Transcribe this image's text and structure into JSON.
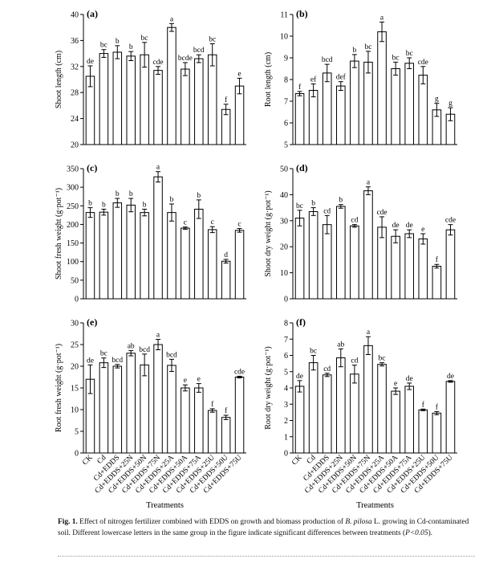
{
  "figure": {
    "xlabel": "Treatments",
    "categories": [
      "CK",
      "Cd",
      "Cd+EDDS",
      "Cd+EDDS+25N",
      "Cd+EDDS+50N",
      "Cd+EDDS+75N",
      "Cd+EDDS+25A",
      "Cd+EDDS+50A",
      "Cd+EDDS+75A",
      "Cd+EDDS+25U",
      "Cd+EDDS+50U",
      "Cd+EDDS+75U"
    ]
  },
  "caption": {
    "label": "Fig. 1.",
    "text_a": "Effect of nitrogen fertilizer combined with EDDS on growth and biomass production of ",
    "species": "B. pilosa",
    "text_b": " L. growing in Cd-contaminated soil. Different lowercase letters in the same group in the figure indicate significant differences between treatments (",
    "pvalue": "P<0.05",
    "text_c": ")."
  },
  "chart_data": [
    {
      "type": "bar",
      "panel": "(a)",
      "ylabel": "Shoot  length (cm)",
      "ylim": [
        20,
        40
      ],
      "yticks": [
        20,
        24,
        28,
        32,
        36,
        40
      ],
      "categories": [
        "CK",
        "Cd",
        "Cd+EDDS",
        "Cd+EDDS+25N",
        "Cd+EDDS+50N",
        "Cd+EDDS+75N",
        "Cd+EDDS+25A",
        "Cd+EDDS+50A",
        "Cd+EDDS+75A",
        "Cd+EDDS+25U",
        "Cd+EDDS+50U",
        "Cd+EDDS+75U"
      ],
      "values": [
        30.5,
        34.0,
        34.2,
        33.6,
        33.8,
        31.4,
        38.0,
        31.6,
        33.2,
        33.8,
        25.4,
        29.0
      ],
      "errors": [
        1.6,
        0.6,
        1.0,
        0.7,
        1.9,
        0.6,
        0.6,
        1.0,
        0.6,
        1.7,
        0.8,
        1.2
      ],
      "letters": [
        "de",
        "bc",
        "b",
        "b",
        "bc",
        "cde",
        "a",
        "bcde",
        "bcd",
        "bc",
        "f",
        "e"
      ]
    },
    {
      "type": "bar",
      "panel": "(b)",
      "ylabel": "Root  length (cm)",
      "ylim": [
        5,
        11
      ],
      "yticks": [
        5,
        6,
        7,
        8,
        9,
        10,
        11
      ],
      "categories": [
        "CK",
        "Cd",
        "Cd+EDDS",
        "Cd+EDDS+25N",
        "Cd+EDDS+50N",
        "Cd+EDDS+75N",
        "Cd+EDDS+25A",
        "Cd+EDDS+50A",
        "Cd+EDDS+75A",
        "Cd+EDDS+25U",
        "Cd+EDDS+50U",
        "Cd+EDDS+75U"
      ],
      "values": [
        7.35,
        7.5,
        8.3,
        7.7,
        8.85,
        8.8,
        10.2,
        8.5,
        8.75,
        8.2,
        6.6,
        6.4
      ],
      "errors": [
        0.1,
        0.3,
        0.4,
        0.2,
        0.3,
        0.5,
        0.45,
        0.3,
        0.25,
        0.4,
        0.3,
        0.3
      ],
      "letters": [
        "f",
        "ef",
        "bcd",
        "def",
        "b",
        "bc",
        "a",
        "bc",
        "bc",
        "cde",
        "g",
        "g"
      ]
    },
    {
      "type": "bar",
      "panel": "(c)",
      "ylabel": "Shoot fresh weight (g·pot⁻¹)",
      "ylim": [
        0,
        350
      ],
      "yticks": [
        0,
        50,
        100,
        150,
        200,
        250,
        300,
        350
      ],
      "categories": [
        "CK",
        "Cd",
        "Cd+EDDS",
        "Cd+EDDS+25N",
        "Cd+EDDS+50N",
        "Cd+EDDS+75N",
        "Cd+EDDS+25A",
        "Cd+EDDS+50A",
        "Cd+EDDS+75A",
        "Cd+EDDS+25U",
        "Cd+EDDS+50U",
        "Cd+EDDS+75U"
      ],
      "values": [
        232,
        233,
        258,
        252,
        232,
        328,
        232,
        190,
        241,
        186,
        101,
        184
      ],
      "errors": [
        13,
        8,
        12,
        18,
        9,
        14,
        23,
        3,
        25,
        8,
        5,
        5
      ],
      "letters": [
        "b",
        "b",
        "b",
        "b",
        "b",
        "a",
        "b",
        "c",
        "b",
        "c",
        "d",
        "c"
      ]
    },
    {
      "type": "bar",
      "panel": "(d)",
      "ylabel": "Shoot dry weight (g·pot⁻¹)",
      "ylim": [
        0,
        50
      ],
      "yticks": [
        0,
        10,
        20,
        30,
        40,
        50
      ],
      "categories": [
        "CK",
        "Cd",
        "Cd+EDDS",
        "Cd+EDDS+25N",
        "Cd+EDDS+50N",
        "Cd+EDDS+75N",
        "Cd+EDDS+25A",
        "Cd+EDDS+50A",
        "Cd+EDDS+75A",
        "Cd+EDDS+25U",
        "Cd+EDDS+50U",
        "Cd+EDDS+75U"
      ],
      "values": [
        31,
        33.5,
        28.5,
        35.5,
        28,
        41.5,
        27.5,
        24,
        25,
        23,
        12.5,
        26.5
      ],
      "errors": [
        3,
        1.5,
        3.5,
        0.7,
        0.5,
        1.5,
        4,
        2.5,
        1.5,
        2,
        0.7,
        2
      ],
      "letters": [
        "bc",
        "b",
        "cd",
        "b",
        "cd",
        "a",
        "cde",
        "de",
        "de",
        "e",
        "f",
        "cde"
      ]
    },
    {
      "type": "bar",
      "panel": "(e)",
      "ylabel": "Root fresh weight (g·pot⁻¹)",
      "ylim": [
        0,
        30
      ],
      "yticks": [
        0,
        5,
        10,
        15,
        20,
        25,
        30
      ],
      "categories": [
        "CK",
        "Cd",
        "Cd+EDDS",
        "Cd+EDDS+25N",
        "Cd+EDDS+50N",
        "Cd+EDDS+75N",
        "Cd+EDDS+25A",
        "Cd+EDDS+50A",
        "Cd+EDDS+75A",
        "Cd+EDDS+25U",
        "Cd+EDDS+50U",
        "Cd+EDDS+75U"
      ],
      "values": [
        17,
        20.8,
        20,
        23,
        20.3,
        25,
        20.2,
        15,
        15,
        9.8,
        8.2,
        17.5
      ],
      "errors": [
        3.3,
        1.1,
        0.4,
        0.6,
        2.5,
        1.2,
        1.4,
        0.7,
        1.0,
        0.4,
        0.5,
        0.2
      ],
      "letters": [
        "de",
        "bc",
        "bcd",
        "ab",
        "bcd",
        "a",
        "bcd",
        "e",
        "e",
        "f",
        "f",
        "cde"
      ]
    },
    {
      "type": "bar",
      "panel": "(f)",
      "ylabel": "Root dry weight (g·pot⁻¹)",
      "ylim": [
        0,
        8
      ],
      "yticks": [
        0,
        1,
        2,
        3,
        4,
        5,
        6,
        7,
        8
      ],
      "categories": [
        "CK",
        "Cd",
        "Cd+EDDS",
        "Cd+EDDS+25N",
        "Cd+EDDS+50N",
        "Cd+EDDS+75N",
        "Cd+EDDS+25A",
        "Cd+EDDS+50A",
        "Cd+EDDS+75A",
        "Cd+EDDS+25U",
        "Cd+EDDS+50U",
        "Cd+EDDS+75U"
      ],
      "values": [
        4.1,
        5.55,
        4.8,
        5.85,
        4.85,
        6.6,
        5.45,
        3.8,
        4.1,
        2.65,
        2.45,
        4.4
      ],
      "errors": [
        0.35,
        0.45,
        0.1,
        0.55,
        0.55,
        0.55,
        0.1,
        0.2,
        0.2,
        0.05,
        0.1,
        0.05
      ],
      "letters": [
        "de",
        "bc",
        "cd",
        "ab",
        "cd",
        "a",
        "bc",
        "e",
        "de",
        "f",
        "f",
        "de"
      ]
    }
  ]
}
